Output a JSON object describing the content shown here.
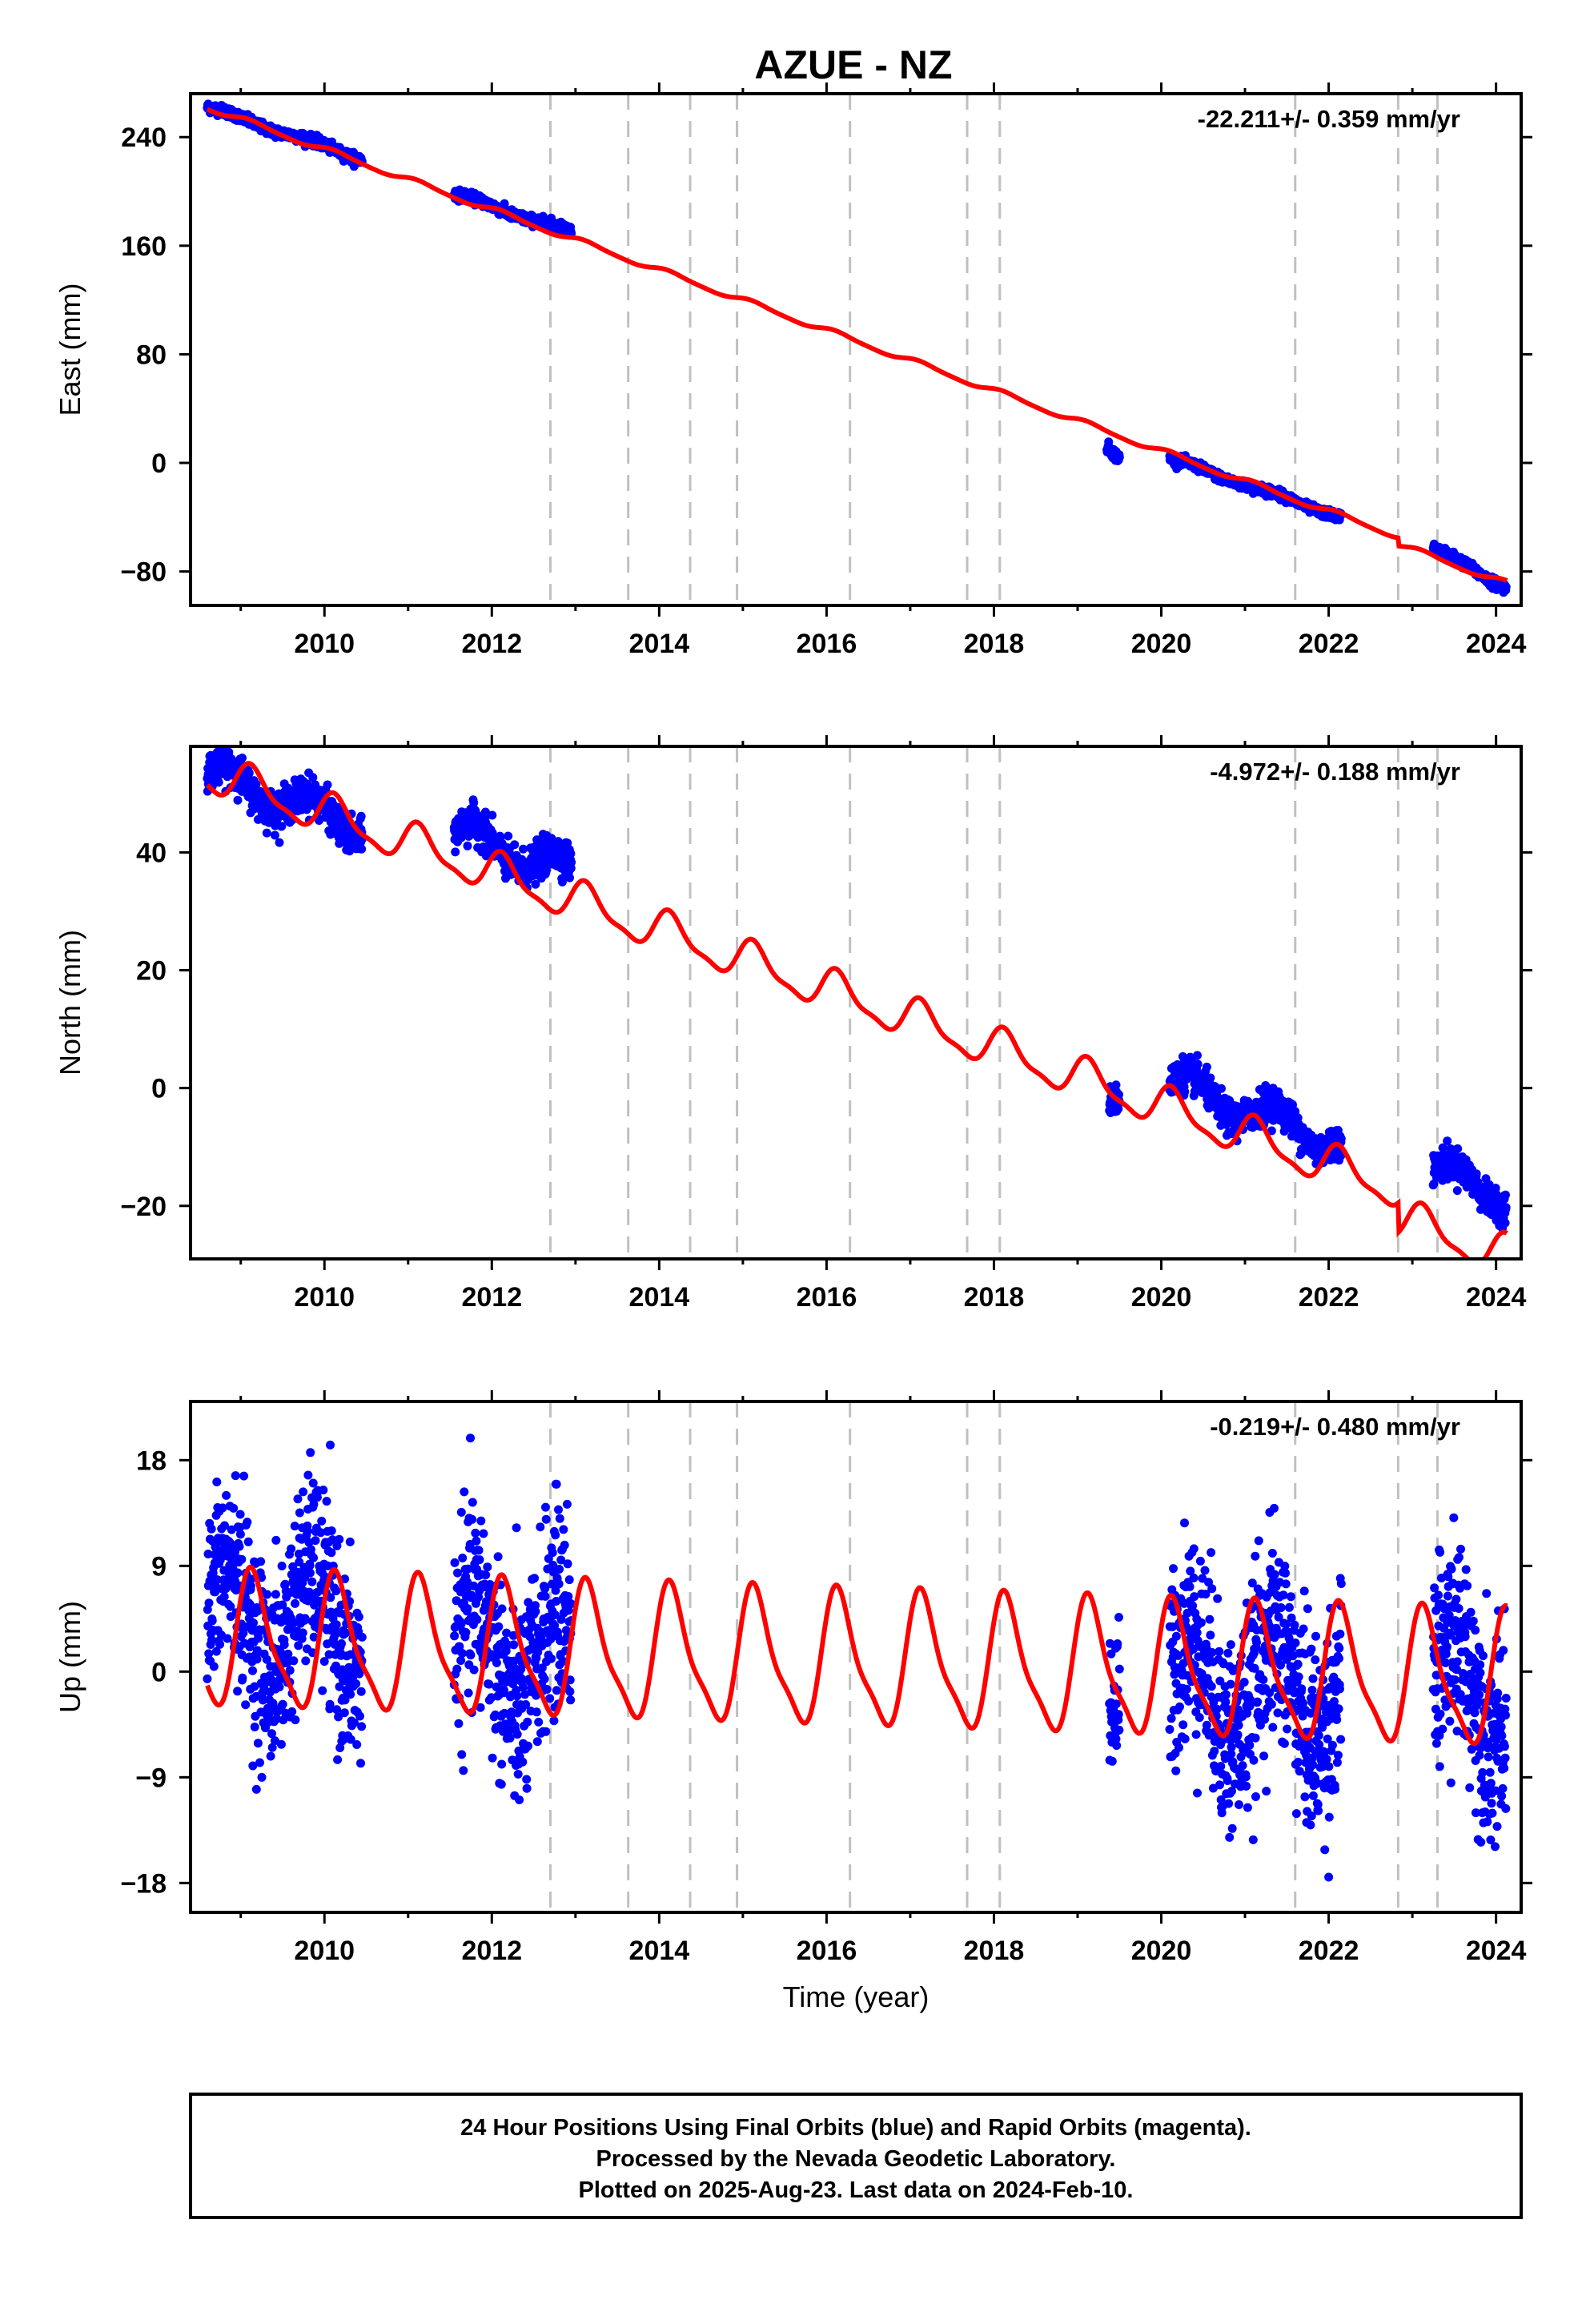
{
  "page": {
    "title": "AZUE - NZ"
  },
  "colors": {
    "final_orbits": "#0000ff",
    "rapid_orbits": "#ff00ff",
    "model": "#ff0000",
    "event_lines": "#c0c0c0",
    "axes": "#000000"
  },
  "footer": {
    "line1": "24 Hour Positions Using Final Orbits (blue) and Rapid Orbits (magenta).",
    "line2": "Processed by the Nevada Geodetic Laboratory.",
    "line3": "Plotted on 2025-Aug-23. Last data on 2024-Feb-10."
  },
  "chart_data": [
    {
      "type": "scatter",
      "title": "AZUE - NZ",
      "ylabel": "East (mm)",
      "xlabel": "",
      "rate": "-22.211+/- 0.359 mm/yr",
      "xlim": [
        2008.4,
        2024.3
      ],
      "ylim": [
        -105,
        272
      ],
      "yticks": [
        -80,
        0,
        80,
        160,
        240
      ],
      "xticks": [
        2010,
        2012,
        2014,
        2016,
        2018,
        2020,
        2022,
        2024
      ],
      "event_lines": [
        2012.7,
        2013.63,
        2014.37,
        2014.93,
        2016.28,
        2017.68,
        2018.07,
        2021.6,
        2022.83,
        2023.3
      ],
      "segments": [
        {
          "start": 2008.6,
          "end": 2010.45,
          "y0": 262,
          "slope": -20.5,
          "amp": 1.5,
          "noise": 1.8,
          "offset": 0
        },
        {
          "start": 2011.55,
          "end": 2012.95,
          "y0": 198,
          "slope": -20.0,
          "amp": 1.5,
          "noise": 1.8,
          "offset": 0
        },
        {
          "start": 2019.35,
          "end": 2019.5,
          "y0": 12,
          "slope": -60,
          "amp": 0,
          "noise": 2.0,
          "offset": 0
        },
        {
          "start": 2020.1,
          "end": 2022.15,
          "y0": 3,
          "slope": -21.0,
          "amp": 1.5,
          "noise": 1.6,
          "offset": 0
        },
        {
          "start": 2023.25,
          "end": 2024.12,
          "y0": -63,
          "slope": -33.0,
          "amp": 1.5,
          "noise": 1.8,
          "offset": 0
        }
      ],
      "model": {
        "a": 262,
        "t0": 2008.6,
        "b": -22.211,
        "c": 1.5,
        "s": 1.2,
        "d": 0.3,
        "e": 0.3,
        "breaks": [
          [
            2022.83,
            -6
          ]
        ]
      }
    },
    {
      "type": "scatter",
      "title": "",
      "ylabel": "North (mm)",
      "xlabel": "",
      "rate": "-4.972+/- 0.188 mm/yr",
      "xlim": [
        2008.4,
        2024.3
      ],
      "ylim": [
        -29,
        58
      ],
      "yticks": [
        -20,
        0,
        20,
        40
      ],
      "xticks": [
        2010,
        2012,
        2014,
        2016,
        2018,
        2020,
        2022,
        2024
      ],
      "event_lines": [
        2012.7,
        2013.63,
        2014.37,
        2014.93,
        2016.28,
        2017.68,
        2018.07,
        2021.6,
        2022.83,
        2023.3
      ],
      "segments": [
        {
          "start": 2008.6,
          "end": 2010.45,
          "y0": 53.5,
          "slope": -4.97,
          "amp": 2.5,
          "noise": 1.5,
          "offset": 0
        },
        {
          "start": 2011.55,
          "end": 2012.95,
          "y0": 43.5,
          "slope": -4.97,
          "amp": 2.5,
          "noise": 1.5,
          "offset": 0
        },
        {
          "start": 2019.38,
          "end": 2019.5,
          "y0": -2,
          "slope": 0,
          "amp": 0,
          "noise": 1.2,
          "offset": 0
        },
        {
          "start": 2020.1,
          "end": 2022.15,
          "y0": 1.0,
          "slope": -4.97,
          "amp": 2.5,
          "noise": 1.4,
          "offset": 0
        },
        {
          "start": 2023.25,
          "end": 2024.12,
          "y0": -14,
          "slope": -4.97,
          "amp": 2.5,
          "noise": 1.3,
          "offset": 0
        }
      ],
      "model": {
        "a": 53.5,
        "t0": 2008.6,
        "b": -4.972,
        "c": 2.5,
        "s": 2.0,
        "d": 0.9,
        "e": 0.5,
        "breaks": [
          [
            2022.83,
            -5
          ]
        ]
      }
    },
    {
      "type": "scatter",
      "title": "",
      "ylabel": "Up (mm)",
      "xlabel": "Time (year)",
      "rate": "-0.219+/- 0.480 mm/yr",
      "xlim": [
        2008.4,
        2024.3
      ],
      "ylim": [
        -20.5,
        23
      ],
      "yticks": [
        -18,
        -9,
        0,
        9,
        18
      ],
      "xticks": [
        2010,
        2012,
        2014,
        2016,
        2018,
        2020,
        2022,
        2024
      ],
      "event_lines": [
        2012.7,
        2013.63,
        2014.37,
        2014.93,
        2016.28,
        2017.68,
        2018.07,
        2021.6,
        2022.83,
        2023.3
      ],
      "segments": [
        {
          "start": 2008.6,
          "end": 2010.45,
          "y0": 4.5,
          "slope": -0.22,
          "amp": 4.5,
          "noise": 4.0,
          "offset": 0
        },
        {
          "start": 2011.55,
          "end": 2012.95,
          "y0": 1.5,
          "slope": -0.22,
          "amp": 4.5,
          "noise": 4.3,
          "offset": 0
        },
        {
          "start": 2019.38,
          "end": 2019.5,
          "y0": -3,
          "slope": 0,
          "amp": 0,
          "noise": 3.5,
          "offset": 0
        },
        {
          "start": 2020.1,
          "end": 2022.15,
          "y0": -1.0,
          "slope": -0.22,
          "amp": 4.5,
          "noise": 4.3,
          "offset": 0
        },
        {
          "start": 2023.25,
          "end": 2024.12,
          "y0": -1.5,
          "slope": -0.22,
          "amp": 4.5,
          "noise": 4.3,
          "offset": 0
        }
      ],
      "model": {
        "a": 2.5,
        "t0": 2008.6,
        "b": -0.219,
        "c": 4.5,
        "s": 3.0,
        "d": 1.2,
        "e": 0.8,
        "breaks": []
      }
    }
  ]
}
